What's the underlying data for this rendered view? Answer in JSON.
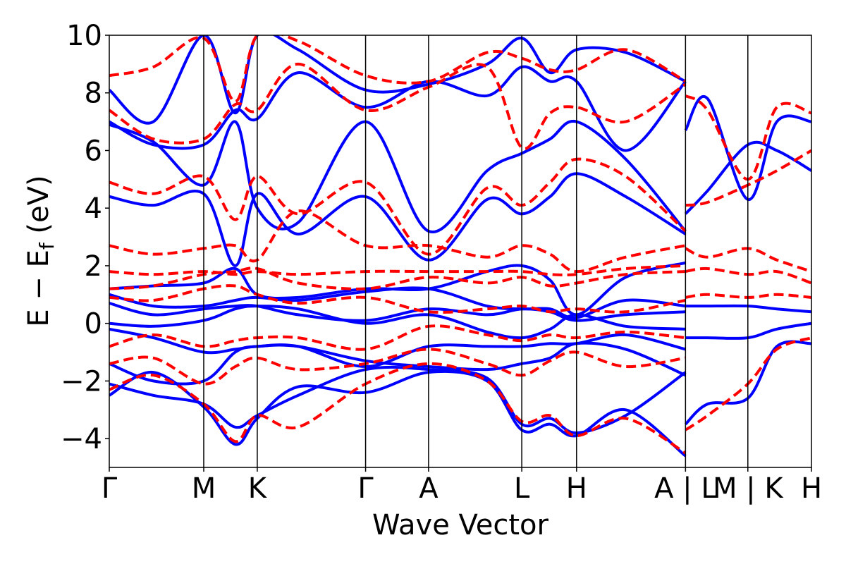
{
  "chart_data": {
    "type": "line",
    "title": "",
    "xlabel": "Wave Vector",
    "ylabel_main": "E − E",
    "ylabel_sub": "f",
    "ylabel_unit": " (eV)",
    "ylim": [
      -5,
      10
    ],
    "yticks": [
      -4,
      -2,
      0,
      2,
      4,
      6,
      8,
      10
    ],
    "ytick_labels": [
      "−4",
      "−2",
      "0",
      "2",
      "4",
      "6",
      "8",
      "10"
    ],
    "xlim": [
      0,
      11.15
    ],
    "kpoints": [
      {
        "label": "Γ",
        "x": 0
      },
      {
        "label": "M",
        "x": 1.5
      },
      {
        "label": "K",
        "x": 2.35
      },
      {
        "label": "Γ",
        "x": 4.07
      },
      {
        "label": "A",
        "x": 5.07
      },
      {
        "label": "L",
        "x": 6.55
      },
      {
        "label": "H",
        "x": 7.42
      },
      {
        "label": "A | L",
        "x": 9.15
      },
      {
        "label": "M | K",
        "x": 10.14
      },
      {
        "label": "H",
        "x": 11.15
      }
    ],
    "series": [
      {
        "style": "solid",
        "color": "#0000ff",
        "bands": [
          {
            "x": [
              0,
              0.7,
              1.5,
              2.0,
              2.35,
              3.0,
              4.07,
              5.07,
              6.0,
              6.55,
              7.0,
              7.42,
              8.2,
              9.15
            ],
            "y": [
              -2.5,
              -1.7,
              -2.9,
              -4.2,
              -3.3,
              -2.2,
              -2.4,
              -1.7,
              -2.0,
              -3.7,
              -3.5,
              -3.9,
              -3.0,
              -4.6
            ]
          },
          {
            "x": [
              0,
              0.7,
              1.5,
              2.0,
              2.35,
              3.0,
              4.07,
              5.07,
              6.0,
              6.55,
              7.0,
              7.42,
              8.2,
              9.15
            ],
            "y": [
              -2.1,
              -2.5,
              -2.8,
              -3.6,
              -3.2,
              -2.5,
              -1.6,
              -1.6,
              -1.9,
              -3.5,
              -3.3,
              -3.8,
              -3.2,
              -1.7
            ]
          },
          {
            "x": [
              0,
              0.7,
              1.5,
              2.0,
              2.35,
              3.0,
              4.07,
              5.07,
              6.0,
              6.55,
              7.0,
              7.42,
              8.2,
              9.15
            ],
            "y": [
              -1.4,
              -2.0,
              -2.0,
              -1.0,
              -0.8,
              -0.8,
              -1.3,
              -1.5,
              -1.6,
              -1.4,
              -1.2,
              -0.7,
              -0.9,
              -1.8
            ]
          },
          {
            "x": [
              0,
              0.7,
              1.5,
              2.0,
              2.35,
              3.0,
              4.07,
              5.07,
              6.0,
              6.55,
              7.0,
              7.42,
              8.2,
              9.15
            ],
            "y": [
              -0.2,
              -0.5,
              -1.0,
              -0.9,
              -0.8,
              -0.8,
              -1.5,
              -0.8,
              -0.8,
              -0.8,
              -0.7,
              -0.7,
              -0.4,
              -0.9
            ]
          },
          {
            "x": [
              0,
              0.7,
              1.5,
              2.0,
              2.35,
              3.0,
              4.07,
              5.07,
              6.0,
              6.55,
              7.0,
              7.42,
              8.2,
              9.15
            ],
            "y": [
              0.0,
              -0.1,
              0.1,
              0.5,
              0.6,
              0.5,
              0.0,
              0.3,
              -0.3,
              -0.5,
              -0.2,
              0.3,
              -0.1,
              -0.2
            ]
          },
          {
            "x": [
              0,
              0.7,
              1.5,
              2.0,
              2.35,
              3.0,
              4.07,
              5.07,
              6.0,
              6.55,
              7.0,
              7.42,
              8.2,
              9.15
            ],
            "y": [
              0.7,
              0.3,
              0.5,
              0.6,
              0.6,
              0.3,
              0.1,
              0.5,
              0.3,
              0.5,
              0.4,
              0.1,
              0.3,
              0.4
            ]
          },
          {
            "x": [
              0,
              0.7,
              1.5,
              2.0,
              2.35,
              3.0,
              4.07,
              5.07,
              6.0,
              6.55,
              7.0,
              7.42,
              8.2,
              9.15
            ],
            "y": [
              1.0,
              0.6,
              0.6,
              0.8,
              0.9,
              0.8,
              1.1,
              1.2,
              0.6,
              0.5,
              0.5,
              0.2,
              0.8,
              0.6
            ]
          },
          {
            "x": [
              0,
              0.7,
              1.5,
              2.0,
              2.35,
              3.0,
              4.07,
              5.07,
              6.0,
              6.55,
              7.0,
              7.42,
              8.2,
              9.15
            ],
            "y": [
              1.2,
              1.3,
              1.4,
              1.9,
              1.0,
              0.9,
              1.2,
              1.2,
              1.8,
              2.0,
              1.5,
              0.3,
              1.6,
              2.1
            ]
          },
          {
            "x": [
              0,
              0.7,
              1.5,
              2.0,
              2.35,
              3.0,
              4.07,
              5.07,
              6.0,
              6.55,
              7.0,
              7.42,
              8.2,
              9.15
            ],
            "y": [
              4.4,
              4.1,
              4.5,
              2.0,
              4.5,
              3.1,
              4.4,
              2.2,
              4.3,
              3.8,
              4.4,
              5.2,
              4.4,
              3.1
            ]
          },
          {
            "x": [
              0,
              0.7,
              1.5,
              2.0,
              2.35,
              3.0,
              4.07,
              5.07,
              6.0,
              6.55,
              7.0,
              7.42,
              8.2,
              9.15
            ],
            "y": [
              6.9,
              6.3,
              4.8,
              7.0,
              4.0,
              3.5,
              7.0,
              3.2,
              5.3,
              5.9,
              6.4,
              7.0,
              5.7,
              3.2
            ]
          },
          {
            "x": [
              0,
              0.7,
              1.5,
              2.0,
              2.35,
              3.0,
              4.07,
              5.07,
              6.0,
              6.55,
              7.0,
              7.42,
              8.2,
              9.15
            ],
            "y": [
              7.0,
              6.2,
              6.2,
              7.4,
              7.1,
              8.7,
              7.5,
              8.4,
              7.9,
              8.9,
              8.4,
              8.4,
              6.0,
              8.4
            ]
          },
          {
            "x": [
              0,
              0.7,
              1.5,
              2.0,
              2.35,
              3.0,
              4.07,
              5.07,
              6.0,
              6.55,
              7.0,
              7.42,
              8.2,
              9.15
            ],
            "y": [
              8.1,
              7.0,
              10.0,
              7.3,
              10.0,
              9.5,
              8.1,
              8.3,
              9.0,
              9.9,
              8.7,
              9.5,
              9.4,
              8.4
            ]
          },
          {
            "x": [
              9.15,
              9.5,
              10.14,
              10.6,
              11.15
            ],
            "y": [
              -3.5,
              -2.8,
              -2.6,
              -0.8,
              -0.7
            ]
          },
          {
            "x": [
              9.15,
              9.5,
              10.14,
              10.6,
              11.15
            ],
            "y": [
              -0.5,
              -0.5,
              -0.5,
              -0.2,
              0.0
            ]
          },
          {
            "x": [
              9.15,
              9.5,
              10.14,
              10.6,
              11.15
            ],
            "y": [
              0.6,
              0.6,
              0.6,
              0.5,
              0.4
            ]
          },
          {
            "x": [
              9.15,
              9.5,
              10.14,
              10.6,
              11.15
            ],
            "y": [
              3.8,
              4.6,
              6.2,
              6.0,
              5.3
            ]
          },
          {
            "x": [
              9.15,
              9.5,
              10.14,
              10.6,
              11.15
            ],
            "y": [
              6.7,
              7.8,
              4.3,
              7.0,
              7.0
            ]
          }
        ]
      },
      {
        "style": "dashed",
        "color": "#ff0000",
        "bands": [
          {
            "x": [
              0,
              0.7,
              1.5,
              2.0,
              2.35,
              3.0,
              4.07,
              5.07,
              6.0,
              6.55,
              7.0,
              7.42,
              8.2,
              9.15
            ],
            "y": [
              -2.3,
              -1.8,
              -2.8,
              -4.1,
              -3.2,
              -3.6,
              -2.1,
              -1.4,
              -2.0,
              -3.4,
              -3.2,
              -3.9,
              -3.3,
              -4.5
            ]
          },
          {
            "x": [
              0,
              0.7,
              1.5,
              2.0,
              2.35,
              3.0,
              4.07,
              5.07,
              6.0,
              6.55,
              7.0,
              7.42,
              8.2,
              9.15
            ],
            "y": [
              -1.4,
              -1.2,
              -2.1,
              -1.5,
              -1.2,
              -1.6,
              -1.4,
              -0.9,
              -1.4,
              -1.8,
              -1.3,
              -1.0,
              -1.5,
              -1.2
            ]
          },
          {
            "x": [
              0,
              0.7,
              1.5,
              2.0,
              2.35,
              3.0,
              4.07,
              5.07,
              6.0,
              6.55,
              7.0,
              7.42,
              8.2,
              9.15
            ],
            "y": [
              -0.8,
              -0.4,
              -0.8,
              -0.6,
              -0.5,
              -0.5,
              -0.9,
              -0.1,
              -0.4,
              -0.6,
              -0.4,
              -0.5,
              -0.3,
              -0.5
            ]
          },
          {
            "x": [
              0,
              0.7,
              1.5,
              2.0,
              2.35,
              3.0,
              4.07,
              5.07,
              6.0,
              6.55,
              7.0,
              7.42,
              8.2,
              9.15
            ],
            "y": [
              0.9,
              0.8,
              1.2,
              1.3,
              1.0,
              0.7,
              0.9,
              0.4,
              0.5,
              0.6,
              0.4,
              0.5,
              0.4,
              0.8
            ]
          },
          {
            "x": [
              0,
              0.7,
              1.5,
              2.0,
              2.35,
              3.0,
              4.07,
              5.07,
              6.0,
              6.55,
              7.0,
              7.42,
              8.2,
              9.15
            ],
            "y": [
              1.2,
              1.3,
              1.7,
              1.8,
              1.9,
              1.4,
              1.2,
              1.6,
              1.4,
              1.6,
              1.3,
              1.4,
              1.7,
              1.8
            ]
          },
          {
            "x": [
              0,
              0.7,
              1.5,
              2.0,
              2.35,
              3.0,
              4.07,
              5.07,
              6.0,
              6.55,
              7.0,
              7.42,
              8.2,
              9.15
            ],
            "y": [
              1.8,
              1.7,
              1.8,
              1.7,
              1.8,
              1.7,
              1.8,
              1.8,
              1.8,
              1.8,
              1.7,
              1.7,
              1.9,
              2.0
            ]
          },
          {
            "x": [
              0,
              0.7,
              1.5,
              2.0,
              2.35,
              3.0,
              4.07,
              5.07,
              6.0,
              6.55,
              7.0,
              7.42,
              8.2,
              9.15
            ],
            "y": [
              2.7,
              2.4,
              2.6,
              2.7,
              2.2,
              3.9,
              2.7,
              2.7,
              2.3,
              2.7,
              2.4,
              1.8,
              2.3,
              2.7
            ]
          },
          {
            "x": [
              0,
              0.7,
              1.5,
              2.0,
              2.35,
              3.0,
              4.07,
              5.07,
              6.0,
              6.55,
              7.0,
              7.42,
              8.2,
              9.15
            ],
            "y": [
              4.9,
              4.5,
              5.1,
              3.6,
              5.1,
              3.8,
              4.9,
              2.4,
              4.7,
              4.1,
              4.9,
              5.7,
              5.1,
              3.2
            ]
          },
          {
            "x": [
              0,
              0.7,
              1.5,
              2.0,
              2.35,
              3.0,
              4.07,
              5.07,
              6.0,
              6.55,
              7.0,
              7.42,
              8.2,
              9.15
            ],
            "y": [
              7.4,
              6.4,
              6.4,
              7.6,
              7.4,
              9.0,
              7.4,
              8.2,
              8.9,
              6.1,
              7.3,
              7.5,
              7.0,
              8.3
            ]
          },
          {
            "x": [
              0,
              0.7,
              1.5,
              2.0,
              2.35,
              3.0,
              4.07,
              5.07,
              6.0,
              6.55,
              7.0,
              7.42,
              8.2,
              9.15
            ],
            "y": [
              8.6,
              8.9,
              9.9,
              7.7,
              10.0,
              9.8,
              8.6,
              8.4,
              9.4,
              9.2,
              8.8,
              8.8,
              9.5,
              8.4
            ]
          },
          {
            "x": [
              9.15,
              9.5,
              10.14,
              10.6,
              11.15
            ],
            "y": [
              -3.7,
              -3.2,
              -2.1,
              -0.9,
              -0.5
            ]
          },
          {
            "x": [
              9.15,
              9.5,
              10.14,
              10.6,
              11.15
            ],
            "y": [
              0.9,
              1.0,
              0.9,
              1.0,
              0.9
            ]
          },
          {
            "x": [
              9.15,
              9.5,
              10.14,
              10.6,
              11.15
            ],
            "y": [
              1.8,
              1.9,
              1.7,
              1.8,
              1.4
            ]
          },
          {
            "x": [
              9.15,
              9.5,
              10.14,
              10.6,
              11.15
            ],
            "y": [
              2.6,
              2.3,
              2.6,
              2.2,
              1.8
            ]
          },
          {
            "x": [
              9.15,
              9.5,
              10.14,
              10.6,
              11.15
            ],
            "y": [
              4.1,
              4.2,
              4.8,
              5.3,
              6.0
            ]
          },
          {
            "x": [
              9.15,
              9.5,
              10.14,
              10.6,
              11.15
            ],
            "y": [
              7.9,
              7.4,
              5.0,
              7.5,
              7.3
            ]
          }
        ]
      }
    ]
  }
}
